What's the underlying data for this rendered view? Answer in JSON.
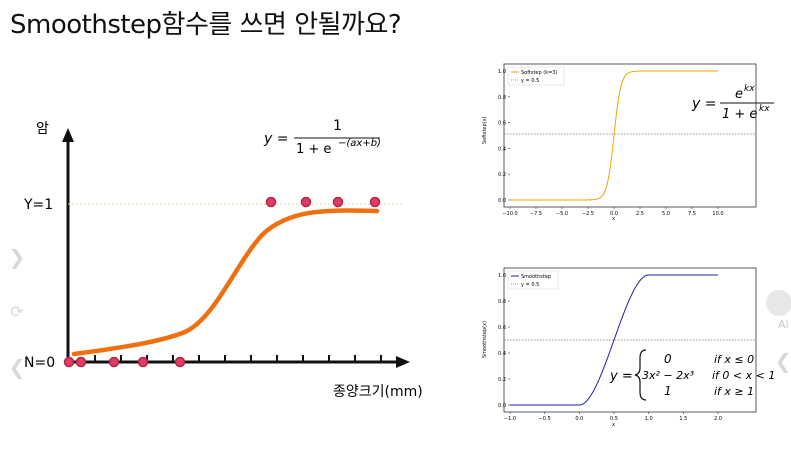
{
  "slide": {
    "title": "Smoothstep함수를 쓰면 안될까요?"
  },
  "main_chart": {
    "ylabel": "암",
    "xlabel": "종양크기(mm)",
    "y1_label": "Y=1",
    "y0_label": "N=0",
    "formula": {
      "y_eq": "y =",
      "numerator": "1",
      "denominator": "1 + e",
      "exponent": "−(ax+b)"
    },
    "curve_color": "#f07010",
    "point_color": "#e03c64"
  },
  "softstep_chart": {
    "legend": [
      "Softstep (k=3)",
      "y = 0.5"
    ],
    "ylabel": "Softstep(x)",
    "xlabel": "x",
    "xticks": [
      "−10.0",
      "−7.5",
      "−5.0",
      "−2.5",
      "0.0",
      "2.5",
      "5.0",
      "7.5",
      "10.0"
    ],
    "yticks": [
      "0.0",
      "0.2",
      "0.4",
      "0.6",
      "0.8",
      "1.0"
    ],
    "formula": {
      "y_eq": "y =",
      "numerator": "e",
      "num_exp": "kx",
      "denominator": "1 + e",
      "den_exp": "kx"
    },
    "color": "#f0a500"
  },
  "smoothstep_chart": {
    "legend": [
      "Smoothstep",
      "y = 0.5"
    ],
    "ylabel": "Smoothstep(x)",
    "xlabel": "x",
    "xticks": [
      "−1.0",
      "−0.5",
      "0.0",
      "0.5",
      "1.0",
      "1.5",
      "2.0"
    ],
    "yticks": [
      "0.0",
      "0.2",
      "0.4",
      "0.6",
      "0.8",
      "1.0"
    ],
    "formula": {
      "y_eq": "y =",
      "case1_val": "0",
      "case1_cond": "if x ≤ 0",
      "case2_val": "3x² − 2x³",
      "case2_cond": "if 0 <  x < 1",
      "case3_val": "1",
      "case3_cond": "if x ≥ 1"
    },
    "color": "#2020a0"
  },
  "viewer": {
    "next_icon": "chevron-right-icon",
    "prev_icon": "chevron-left-icon",
    "rotate_icon": "refresh-icon",
    "edge_text": "Al"
  }
}
